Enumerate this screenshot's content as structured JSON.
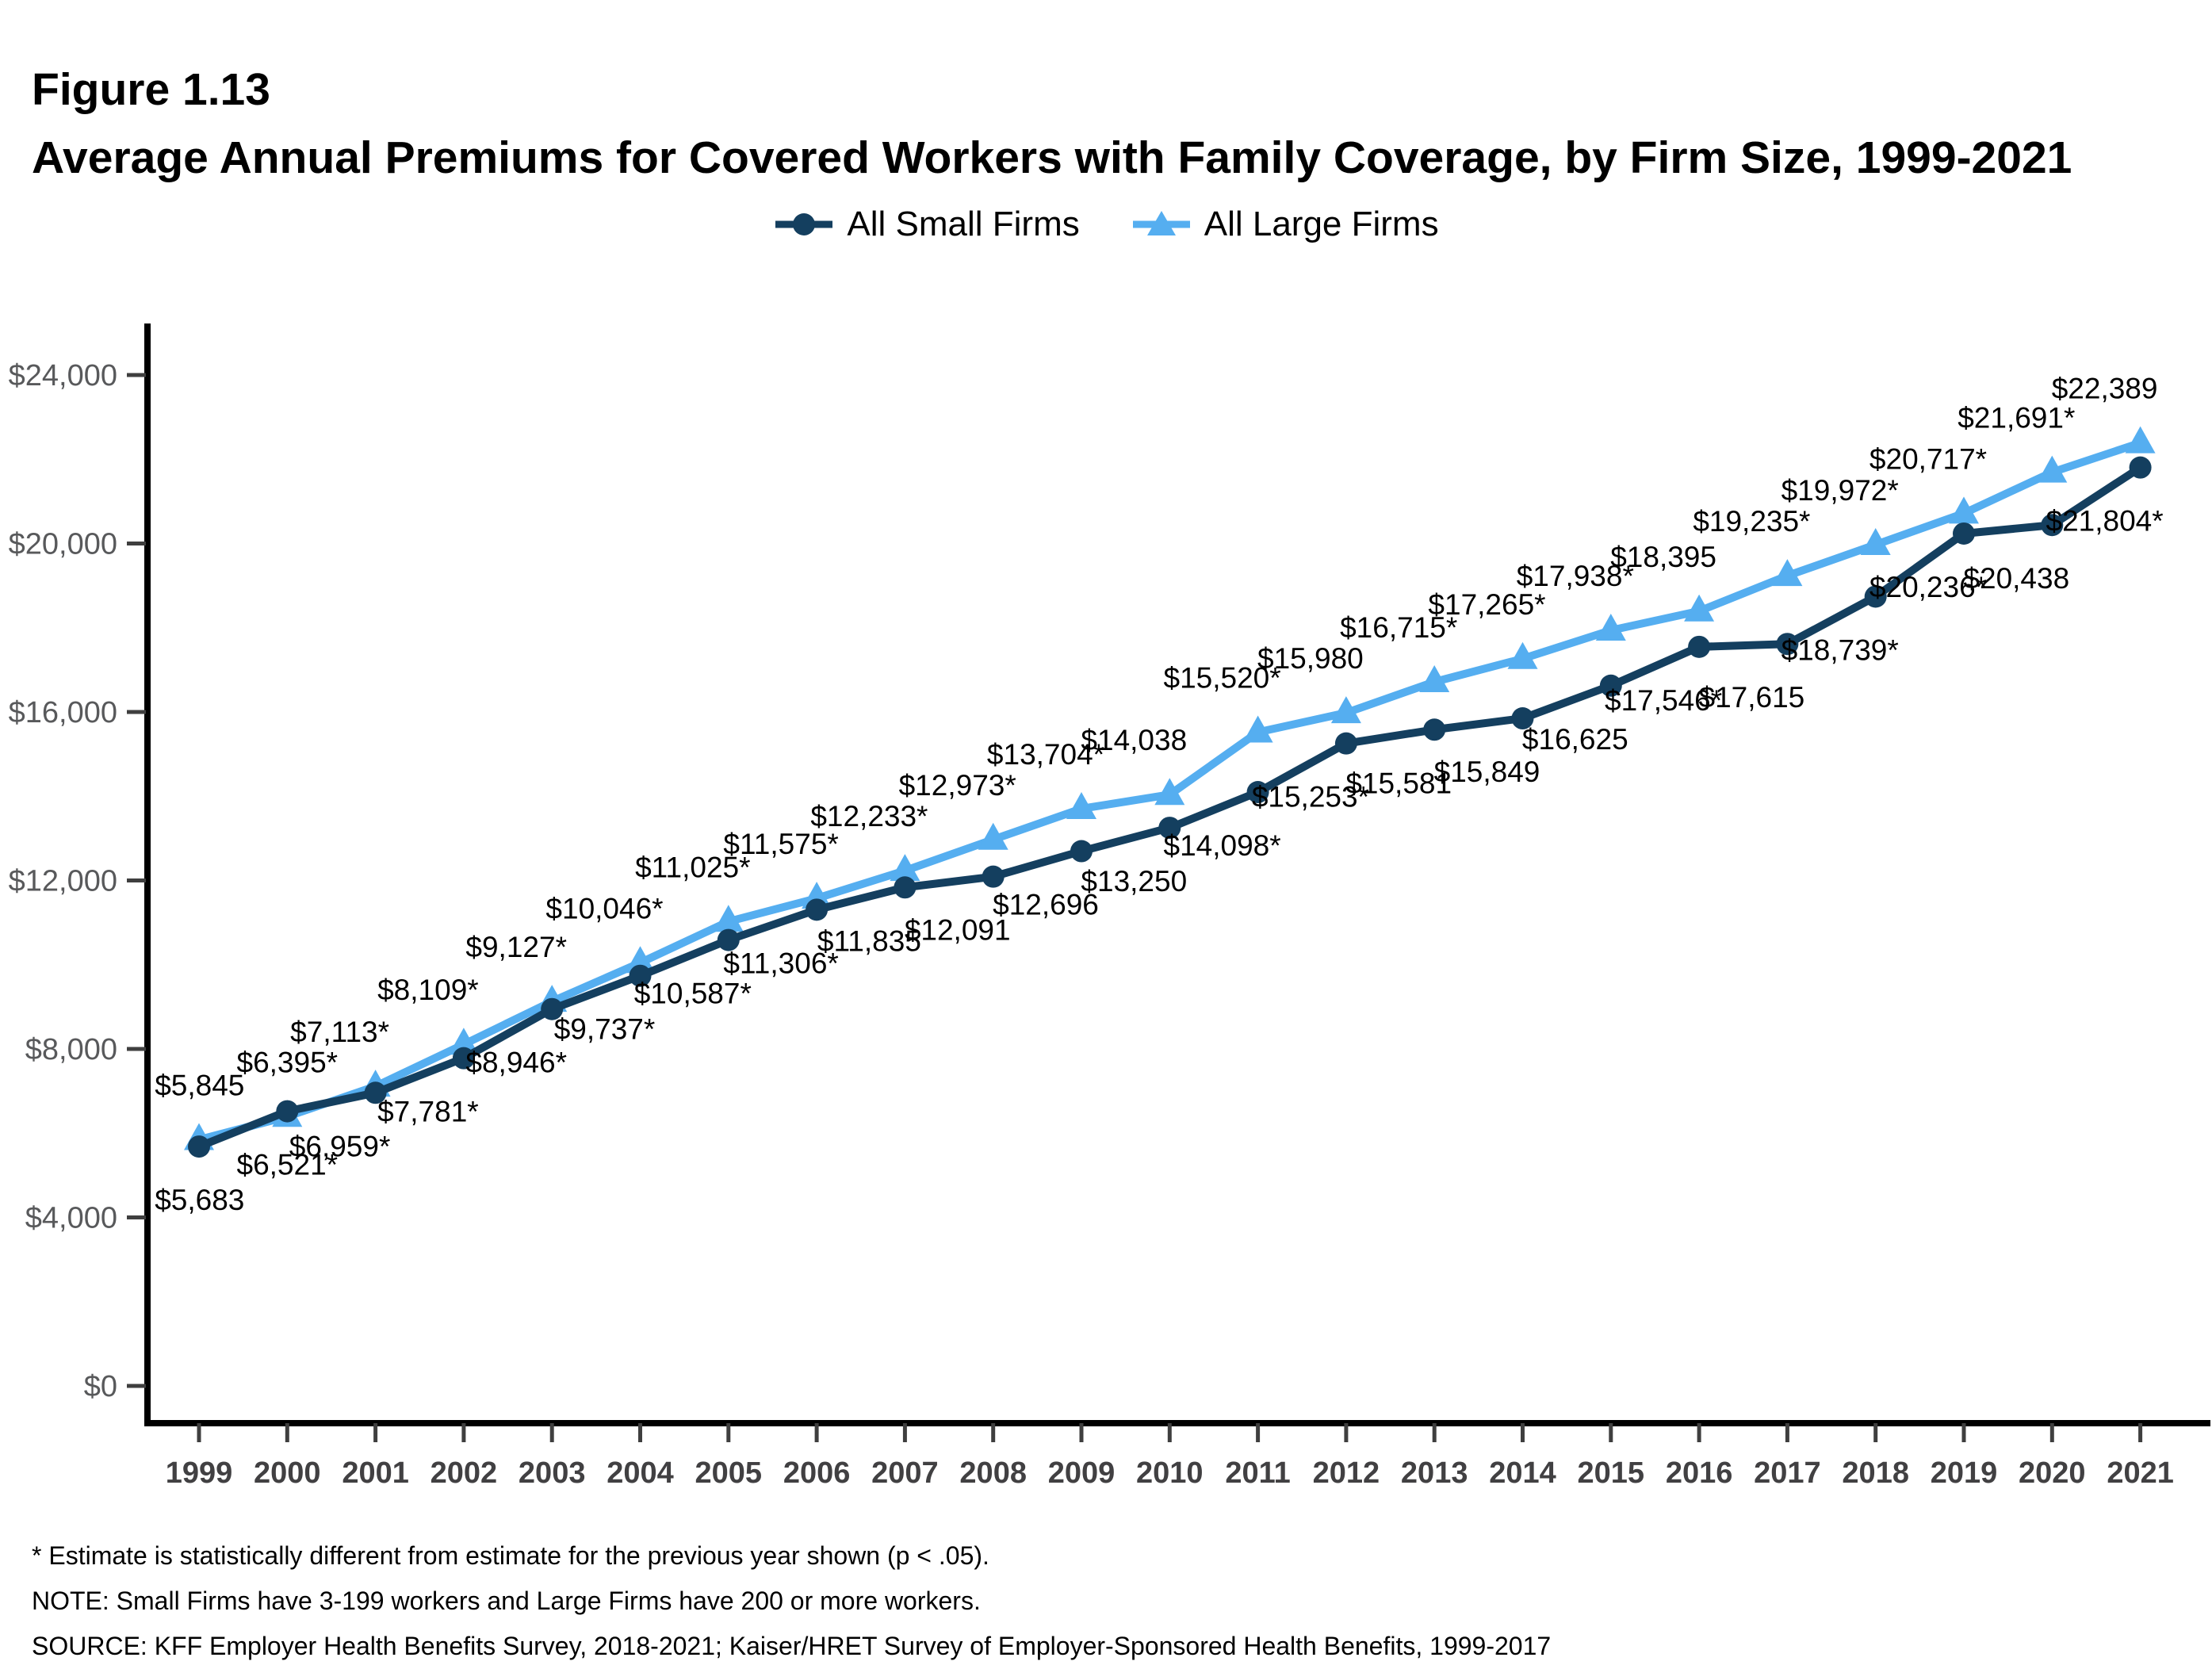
{
  "figure": {
    "label": "Figure 1.13",
    "title": "Average Annual Premiums for Covered Workers with Family Coverage, by Firm Size, 1999-2021"
  },
  "legend": [
    {
      "name": "All Small Firms",
      "color": "#143F5F",
      "marker": "circle"
    },
    {
      "name": "All Large Firms",
      "color": "#55AEF0",
      "marker": "triangle"
    }
  ],
  "footnotes": [
    "* Estimate is statistically different from estimate for the previous year shown (p < .05).",
    "NOTE: Small Firms have 3-199 workers and Large Firms have 200 or more workers.",
    "SOURCE: KFF Employer Health Benefits Survey, 2018-2021; Kaiser/HRET Survey of Employer-Sponsored Health Benefits, 1999-2017"
  ],
  "chart_data": {
    "type": "line",
    "title": "Average Annual Premiums for Covered Workers with Family Coverage, by Firm Size, 1999-2021",
    "xlabel": "",
    "ylabel": "",
    "grid": false,
    "legend_position": "top",
    "ylim": [
      0,
      24000
    ],
    "ytick_values": [
      0,
      4000,
      8000,
      12000,
      16000,
      20000,
      24000
    ],
    "ytick_labels": [
      "$0",
      "$4,000",
      "$8,000",
      "$12,000",
      "$16,000",
      "$20,000",
      "$24,000"
    ],
    "x": [
      1999,
      2000,
      2001,
      2002,
      2003,
      2004,
      2005,
      2006,
      2007,
      2008,
      2009,
      2010,
      2011,
      2012,
      2013,
      2014,
      2015,
      2016,
      2017,
      2018,
      2019,
      2020,
      2021
    ],
    "series": [
      {
        "name": "All Large Firms",
        "color": "#55AEF0",
        "marker": "triangle",
        "label_side": "above",
        "values": [
          5845,
          6395,
          7113,
          8109,
          9127,
          10046,
          11025,
          11575,
          12233,
          12973,
          13704,
          14038,
          15520,
          15980,
          16715,
          17265,
          17938,
          18395,
          19235,
          19972,
          20717,
          21691,
          22389
        ],
        "labels": [
          "$5,845",
          "$6,395*",
          "$7,113*",
          "$8,109*",
          "$9,127*",
          "$10,046*",
          "$11,025*",
          "$11,575*",
          "$12,233*",
          "$12,973*",
          "$13,704*",
          "$14,038",
          "$15,520*",
          "$15,980",
          "$16,715*",
          "$17,265*",
          "$17,938*",
          "$18,395",
          "$19,235*",
          "$19,972*",
          "$20,717*",
          "$21,691*",
          "$22,389"
        ]
      },
      {
        "name": "All Small Firms",
        "color": "#143F5F",
        "marker": "circle",
        "label_side": "below",
        "values": [
          5683,
          6521,
          6959,
          7781,
          8946,
          9737,
          10587,
          11306,
          11835,
          12091,
          12696,
          13250,
          14098,
          15253,
          15581,
          15849,
          16625,
          17546,
          17615,
          18739,
          20236,
          20438,
          21804
        ],
        "labels": [
          "$5,683",
          "$6,521*",
          "$6,959*",
          "$7,781*",
          "$8,946*",
          "$9,737*",
          "$10,587*",
          "$11,306*",
          "$11,835",
          "$12,091",
          "$12,696",
          "$13,250",
          "$14,098*",
          "$15,253*",
          "$15,581",
          "$15,849",
          "$16,625",
          "$17,546*",
          "$17,615",
          "$18,739*",
          "$20,236*",
          "$20,438",
          "$21,804*"
        ]
      }
    ],
    "style": {
      "axis_color": "#000000",
      "tick_color": "#3f3f3f",
      "ytick_label_color": "#58595B",
      "xtick_label_color": "#414042",
      "data_label_color": "#000000"
    }
  }
}
